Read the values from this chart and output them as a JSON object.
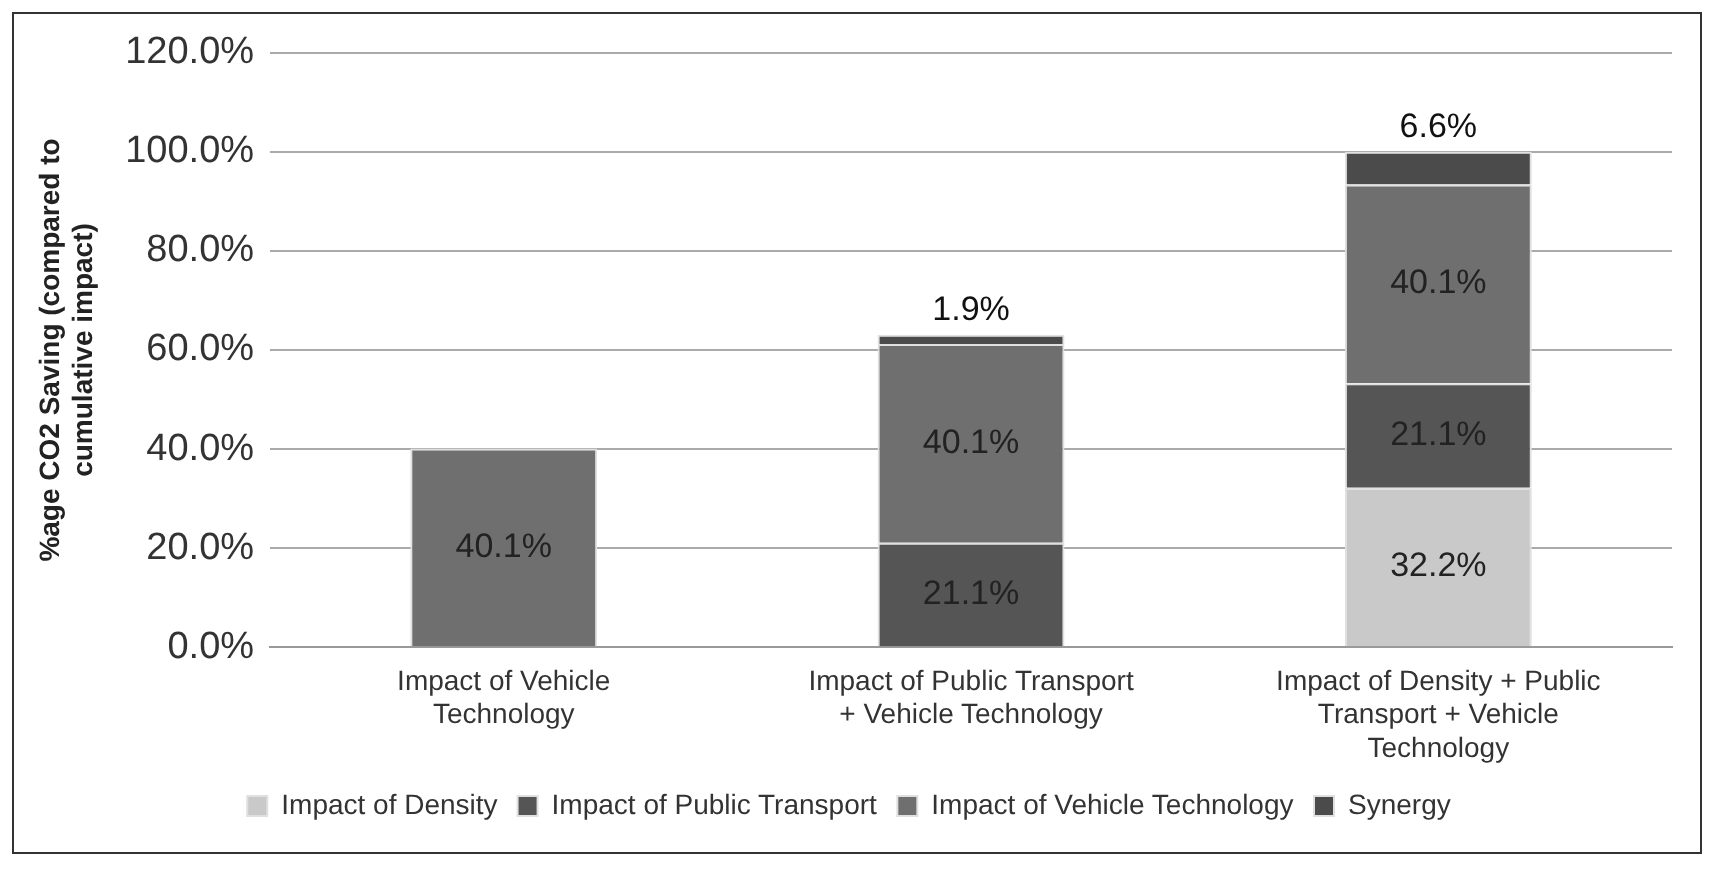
{
  "chart_data": {
    "type": "bar",
    "stacked": true,
    "ylabel": "%age CO2 Saving (compared to cumulative impact)",
    "categories": [
      "Impact of Vehicle Technology",
      "Impact of Public Transport + Vehicle Technology",
      "Impact of Density + Public Transport + Vehicle Technology"
    ],
    "series": [
      {
        "name": "Impact of Density",
        "color": "#c9c9c9",
        "values": [
          null,
          null,
          32.2
        ],
        "value_labels": [
          null,
          null,
          "32.2%"
        ]
      },
      {
        "name": "Impact of Public Transport",
        "color": "#555555",
        "values": [
          null,
          21.1,
          21.1
        ],
        "value_labels": [
          null,
          "21.1%",
          "21.1%"
        ]
      },
      {
        "name": "Impact of Vehicle Technology",
        "color": "#6f6f6f",
        "values": [
          40.1,
          40.1,
          40.1
        ],
        "value_labels": [
          "40.1%",
          "40.1%",
          "40.1%"
        ]
      },
      {
        "name": "Synergy",
        "color": "#4b4b4b",
        "values": [
          null,
          1.9,
          6.6
        ],
        "value_labels": [
          null,
          "1.9%",
          "6.6%"
        ]
      }
    ],
    "ylim": [
      0,
      120
    ],
    "yticks": [
      {
        "value": 0,
        "label": "0.0%"
      },
      {
        "value": 20,
        "label": "20.0%"
      },
      {
        "value": 40,
        "label": "40.0%"
      },
      {
        "value": 60,
        "label": "60.0%"
      },
      {
        "value": 80,
        "label": "80.0%"
      },
      {
        "value": 100,
        "label": "100.0%"
      },
      {
        "value": 120,
        "label": "120.0%"
      }
    ],
    "grid": "y",
    "legend": "bottom"
  }
}
